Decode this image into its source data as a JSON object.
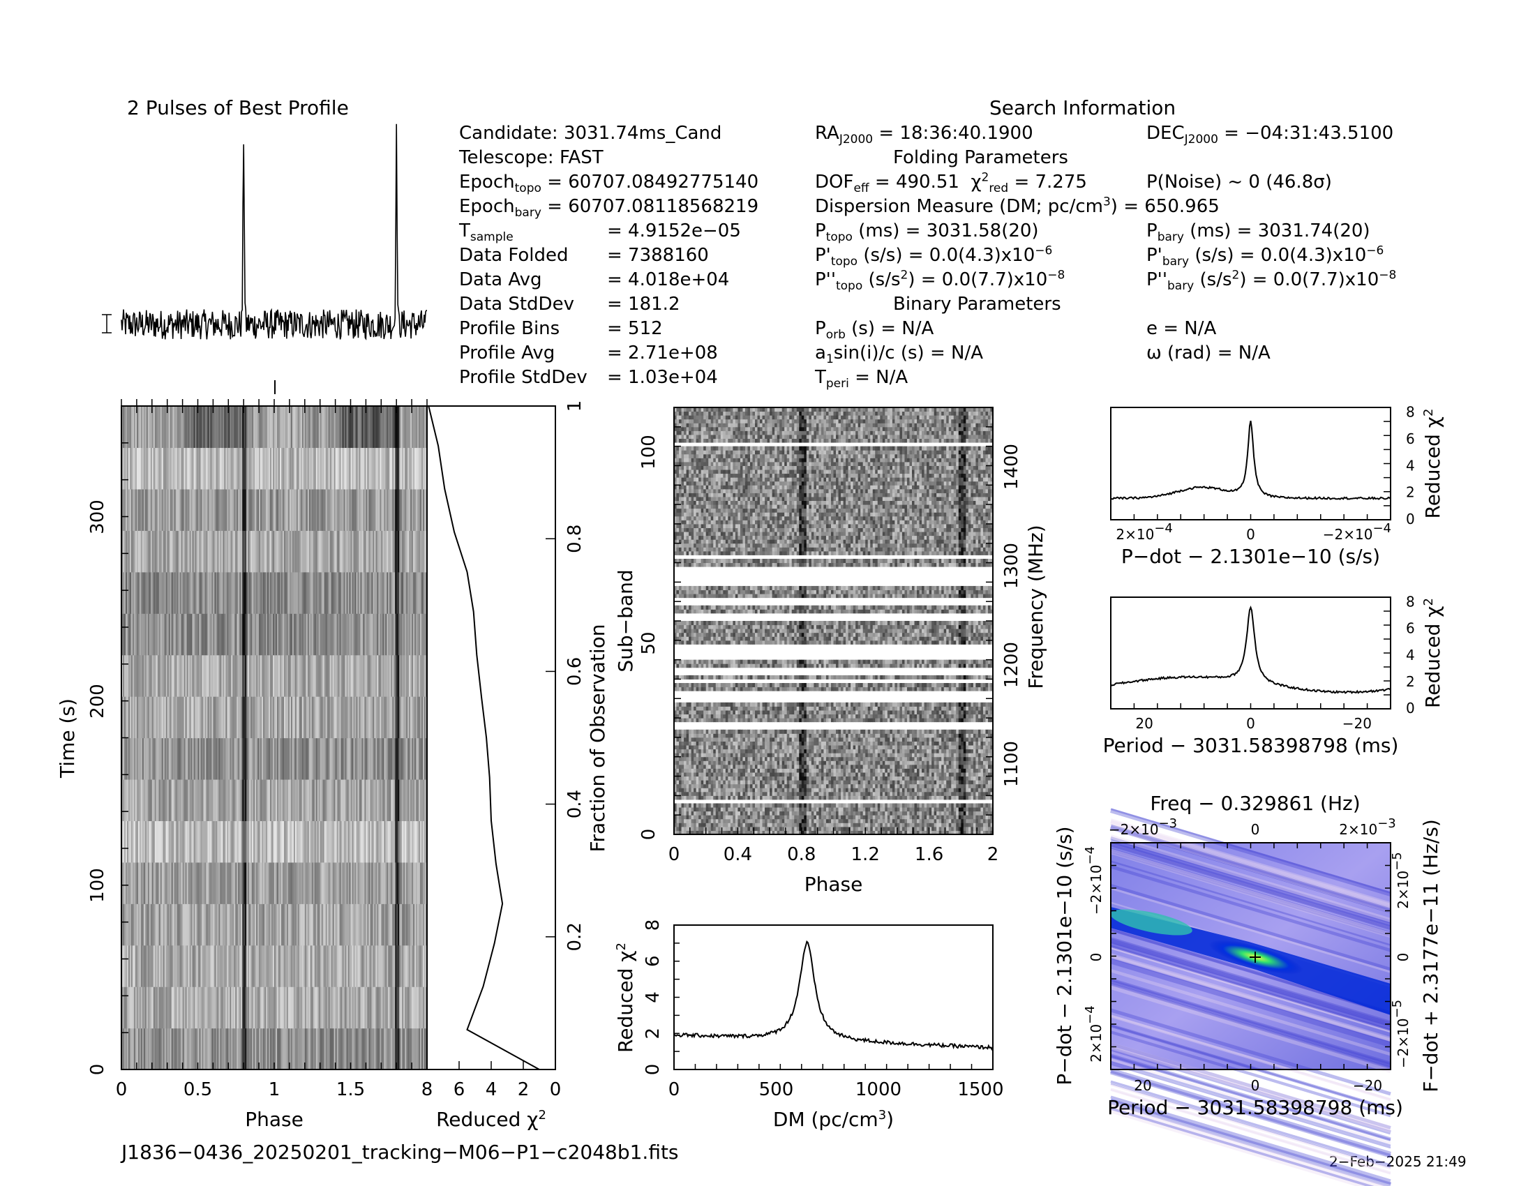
{
  "profile_title": "2 Pulses of Best Profile",
  "search_title": "Search Information",
  "folding_title": "Folding Parameters",
  "binary_title": "Binary Parameters",
  "filename": "J1836−0436_20250201_tracking−M06−P1−c2048b1.fits",
  "date": "2−Feb−2025 21:49",
  "info": {
    "candidate": "Candidate:  3031.74ms_Cand",
    "telescope": "Telescope:  FAST",
    "epoch_topo": " = 60707.08492775140",
    "epoch_bary": " = 60707.08118568219",
    "tsample": "= 4.9152e−05",
    "data_folded": "Data Folded",
    "data_folded_val": "= 7388160",
    "data_avg": "Data Avg",
    "data_avg_val": "= 4.018e+04",
    "data_std": "Data StdDev",
    "data_std_val": "= 181.2",
    "prof_bins": "Profile Bins",
    "prof_bins_val": "= 512",
    "prof_avg": "Profile Avg",
    "prof_avg_val": "= 2.71e+08",
    "prof_std": "Profile StdDev",
    "prof_std_val": "= 1.03e+04",
    "ra": " = 18:36:40.1900",
    "dec": " = −04:31:43.5100",
    "dof": " = 490.51",
    "chi2_red": " = 7.275",
    "pnoise": "P(Noise) ~ 0    (46.8σ)",
    "dm": "Dispersion Measure (DM; pc/cm",
    "dm_val": ") = 650.965",
    "ptopo": " (ms) =  3031.58(20)",
    "pbary": " (ms) =  3031.74(20)",
    "pdot_topo": " (s/s) = 0.0(4.3)x10",
    "pdot_bary": " (s/s) = 0.0(4.3)x10",
    "pddot_topo": " (s/s",
    "pddot_bary": " (s/s",
    "pddot_val": ") = 0.0(7.7)x10",
    "exp6": "−6",
    "exp8": "−8",
    "porb": " (s) = N/A",
    "asini": "sin(i)/c (s) = N/A",
    "tperi": " = N/A",
    "ecc": "e = N/A",
    "omega": "ω (rad) = N/A"
  },
  "chart_data": [
    {
      "type": "line",
      "name": "profile",
      "title": "2 Pulses of Best Profile",
      "xlim": [
        0,
        2
      ],
      "pulse_phase": [
        0.8,
        1.8
      ],
      "pulse_height": 1.0,
      "noise_level": 0.08
    },
    {
      "type": "heatmap",
      "name": "time-phase",
      "xlabel": "Phase",
      "ylabel": "Time (s)",
      "xlim": [
        0,
        2
      ],
      "ylim": [
        0,
        360
      ],
      "xticks": [
        "0",
        "0.5",
        "1",
        "1.5"
      ],
      "yticks": [
        "0",
        "100",
        "200",
        "300"
      ],
      "subintegrations": 16
    },
    {
      "type": "line",
      "name": "reduced-chi2-vs-time",
      "xlabel": "Reduced χ",
      "xlim": [
        8,
        0
      ],
      "xticks": [
        "8",
        "6",
        "4",
        "2",
        "0"
      ],
      "y2label": "Fraction of Observation",
      "y2ticks": [
        "0.2",
        "0.4",
        "0.6",
        "0.8",
        "1"
      ],
      "frac": [
        0.0,
        0.06,
        0.125,
        0.19,
        0.25,
        0.31,
        0.375,
        0.44,
        0.5,
        0.56,
        0.625,
        0.69,
        0.75,
        0.81,
        0.875,
        0.94,
        1.0
      ],
      "chi2": [
        1.0,
        5.5,
        4.5,
        3.8,
        3.3,
        3.7,
        4.0,
        4.1,
        4.3,
        4.6,
        4.9,
        5.1,
        5.5,
        6.3,
        6.9,
        7.3,
        7.9
      ]
    },
    {
      "type": "heatmap",
      "name": "subband-phase",
      "xlabel": "Phase",
      "ylabel": "Sub−band",
      "y2label": "Frequency (MHz)",
      "xticks": [
        "0",
        "0.4",
        "0.8",
        "1.2",
        "1.6",
        "2"
      ],
      "yticks": [
        "0",
        "50",
        "100"
      ],
      "y2ticks": [
        "1100",
        "1200",
        "1300",
        "1400"
      ],
      "masked_bands": [
        [
          8,
          9
        ],
        [
          27,
          29
        ],
        [
          34,
          37
        ],
        [
          39,
          40
        ],
        [
          41,
          43
        ],
        [
          45,
          49
        ],
        [
          55,
          57
        ],
        [
          59,
          61
        ],
        [
          64,
          69
        ],
        [
          71,
          72
        ],
        [
          100,
          101
        ]
      ]
    },
    {
      "type": "line",
      "name": "dm-curve",
      "xlabel": "DM (pc/cm",
      "ylabel": "Reduced χ",
      "xlim": [
        0,
        1560
      ],
      "ylim": [
        0,
        8
      ],
      "xticks": [
        "0",
        "500",
        "1000",
        "1500"
      ],
      "yticks": [
        "0",
        "2",
        "4",
        "6",
        "8"
      ],
      "peak_dm": 650.965,
      "peak": 7.3,
      "base": 1.9
    },
    {
      "type": "line",
      "name": "pdot-curve",
      "xlabel": "P−dot − 2.1301e−10 (s/s)",
      "ylabel": "Reduced χ",
      "xticks": [
        "2×10",
        "0",
        "−2×10"
      ],
      "yticks": [
        "0",
        "2",
        "4",
        "6",
        "8"
      ],
      "peak": 7.3,
      "base": 1.6
    },
    {
      "type": "line",
      "name": "period-curve",
      "xlabel": "Period − 3031.58398798 (ms)",
      "ylabel": "Reduced χ",
      "xticks": [
        "20",
        "0",
        "−20"
      ],
      "yticks": [
        "0",
        "2",
        "4",
        "6",
        "8"
      ],
      "peak": 7.5,
      "base": 1.8
    },
    {
      "type": "heatmap",
      "name": "p-pdot-plane",
      "xlabel": "Period − 3031.58398798 (ms)",
      "ylabel": "P−dot − 2.1301e−10 (s/s)",
      "x2label": "Freq − 0.329861 (Hz)",
      "y2label": "F−dot + 2.3177e−11 (Hz/s)",
      "xticks": [
        "20",
        "0",
        "−20"
      ],
      "x2ticks": [
        "−2×10",
        "0",
        "2×10"
      ],
      "yticks": [
        "−2×10",
        "0",
        "2×10"
      ],
      "y2ticks": [
        "2×10",
        "0",
        "−2×10"
      ]
    }
  ]
}
